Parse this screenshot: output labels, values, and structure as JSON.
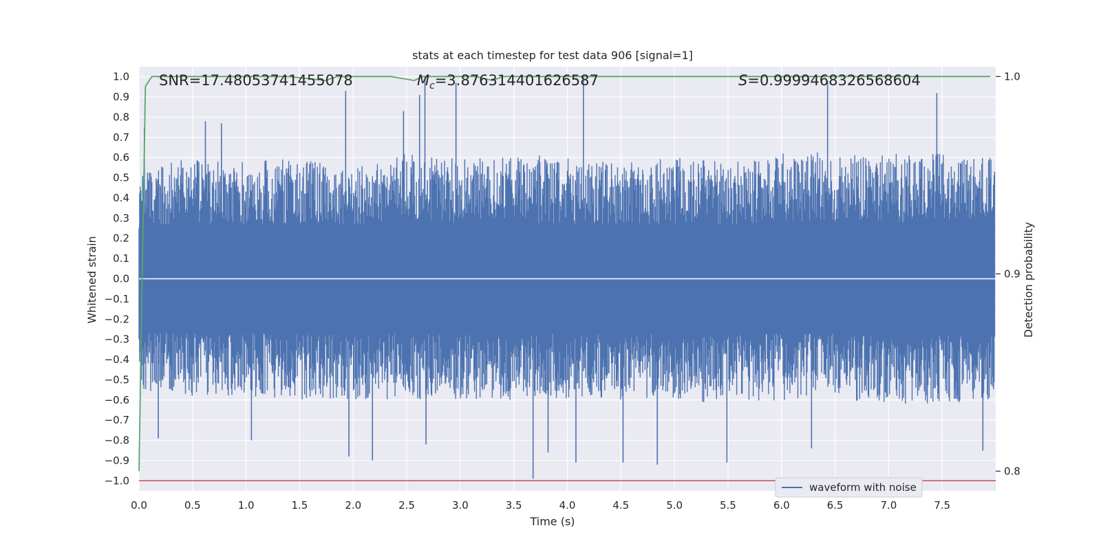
{
  "chart_data": {
    "type": "line",
    "title": "stats at each timestep for test data 906 [signal=1]",
    "xlabel": "Time (s)",
    "ylabel": "Whitened strain",
    "y2label": "Detection probability",
    "xlim": [
      0.0,
      8.0
    ],
    "ylim": [
      -1.05,
      1.05
    ],
    "y2lim": [
      0.79,
      1.005
    ],
    "xticks": [
      "0.0",
      "0.5",
      "1.0",
      "1.5",
      "2.0",
      "2.5",
      "3.0",
      "3.5",
      "4.0",
      "4.5",
      "5.0",
      "5.5",
      "6.0",
      "6.5",
      "7.0",
      "7.5"
    ],
    "yticks": [
      "1.0",
      "0.9",
      "0.8",
      "0.7",
      "0.6",
      "0.5",
      "0.4",
      "0.3",
      "0.2",
      "0.1",
      "0.0",
      "−0.1",
      "−0.2",
      "−0.3",
      "−0.4",
      "−0.5",
      "−0.6",
      "−0.7",
      "−0.8",
      "−0.9",
      "−1.0"
    ],
    "y2ticks": [
      "1.0",
      "0.9",
      "0.8"
    ],
    "grid": true,
    "legend_position": "bottom-right",
    "annotations": {
      "snr": "SNR=17.48053741455078",
      "mc_symbol": "M",
      "mc_sub": "c",
      "mc_value": "=3.876314401626587",
      "s_symbol": "S",
      "s_value": "=0.9999468326568604"
    },
    "series": [
      {
        "name": "waveform with noise",
        "color": "#4c72b0",
        "axis": "left",
        "description_values": "dense whitened-strain noise spanning roughly -1.0 to 1.0",
        "envelope": {
          "t": [
            0.0,
            0.5,
            1.0,
            1.5,
            2.0,
            2.5,
            3.0,
            3.5,
            4.0,
            4.5,
            5.0,
            5.5,
            6.0,
            6.5,
            7.0,
            7.5,
            7.99
          ],
          "upper_typical": [
            0.55,
            0.6,
            0.58,
            0.6,
            0.55,
            0.62,
            0.6,
            0.62,
            0.6,
            0.58,
            0.6,
            0.58,
            0.62,
            0.63,
            0.62,
            0.62,
            0.6
          ],
          "lower_typical": [
            -0.55,
            -0.58,
            -0.58,
            -0.6,
            -0.6,
            -0.6,
            -0.6,
            -0.6,
            -0.6,
            -0.6,
            -0.6,
            -0.62,
            -0.6,
            -0.6,
            -0.62,
            -0.62,
            -0.62
          ]
        },
        "spikes": [
          {
            "t": 0.05,
            "y": 0.75
          },
          {
            "t": 0.18,
            "y": -0.79
          },
          {
            "t": 0.62,
            "y": 0.78
          },
          {
            "t": 0.77,
            "y": 0.77
          },
          {
            "t": 1.05,
            "y": -0.8
          },
          {
            "t": 1.93,
            "y": 0.93
          },
          {
            "t": 1.96,
            "y": -0.88
          },
          {
            "t": 2.18,
            "y": -0.9
          },
          {
            "t": 2.47,
            "y": 0.83
          },
          {
            "t": 2.62,
            "y": 0.91
          },
          {
            "t": 2.67,
            "y": 1.0
          },
          {
            "t": 2.68,
            "y": -0.82
          },
          {
            "t": 2.96,
            "y": 0.97
          },
          {
            "t": 3.68,
            "y": -0.99
          },
          {
            "t": 3.82,
            "y": -0.86
          },
          {
            "t": 4.08,
            "y": -0.91
          },
          {
            "t": 4.15,
            "y": 1.0
          },
          {
            "t": 4.52,
            "y": -0.91
          },
          {
            "t": 4.84,
            "y": -0.92
          },
          {
            "t": 5.49,
            "y": -0.91
          },
          {
            "t": 6.28,
            "y": -0.84
          },
          {
            "t": 6.43,
            "y": 0.98
          },
          {
            "t": 7.45,
            "y": 0.92
          },
          {
            "t": 7.88,
            "y": -0.85
          }
        ]
      },
      {
        "name": "",
        "color": "#55a868",
        "axis": "right",
        "t": [
          0.0,
          0.03,
          0.06,
          0.12,
          0.4,
          1.4,
          1.74,
          1.85,
          2.35,
          2.57,
          2.65,
          3.15,
          3.3,
          3.4,
          5.0,
          6.5,
          7.4,
          7.95
        ],
        "p": [
          0.8,
          0.9,
          0.995,
          1.0,
          1.0,
          1.0,
          0.998,
          1.0,
          1.0,
          0.998,
          1.0,
          1.0,
          0.998,
          1.0,
          1.0,
          1.0,
          1.0,
          1.0
        ]
      },
      {
        "name": "",
        "color": "#c44e52",
        "axis": "left",
        "t": [
          0.0,
          8.0
        ],
        "y": [
          -1.0,
          -1.0
        ]
      },
      {
        "name": "",
        "color": "#ffffff",
        "axis": "left",
        "t": [
          0.0,
          8.0
        ],
        "y": [
          0.0,
          0.0
        ]
      }
    ]
  }
}
